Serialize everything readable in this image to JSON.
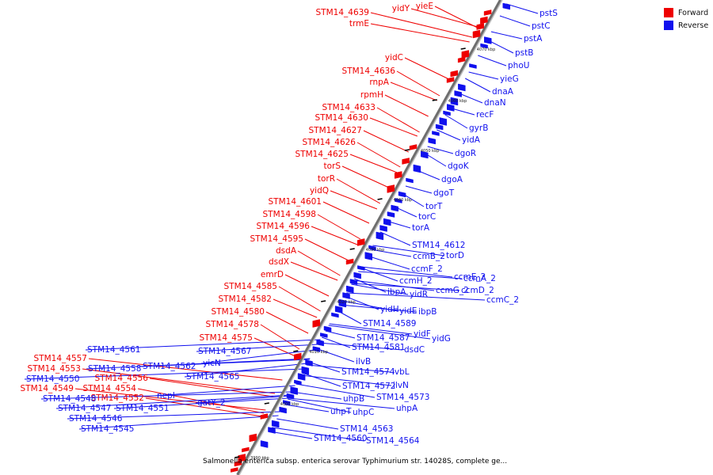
{
  "legend": {
    "forward_label": "Forward",
    "reverse_label": "Reverse",
    "forward_color": "#ee0000",
    "reverse_color": "#1010ee"
  },
  "caption": "Salmonella enterica subsp. enterica serovar Typhimurium str. 14028S, complete ge...",
  "ticks": [
    "4070 kbp",
    "4060 kbp",
    "4050 kbp",
    "4040 kbp",
    "4030 kbp",
    "4020 kbp",
    "4010 kbp",
    "4000 kbp",
    "3990 kbp"
  ],
  "forward_genes": [
    "yidY",
    "yieE",
    "STM14_4639",
    "trmE",
    "yidC",
    "STM14_4636",
    "rnpA",
    "rpmH",
    "STM14_4633",
    "STM14_4630",
    "STM14_4627",
    "STM14_4626",
    "STM14_4625",
    "torS",
    "torR",
    "yidQ",
    "STM14_4601",
    "STM14_4598",
    "STM14_4596",
    "STM14_4595",
    "dsdA",
    "dsdX",
    "emrD",
    "STM14_4585",
    "STM14_4582",
    "STM14_4580",
    "STM14_4578",
    "STM14_4575",
    "STM14_4557",
    "STM14_4553",
    "STM14_4556",
    "STM14_4549",
    "STM14_4554",
    "STM14_4552"
  ],
  "reverse_genes": [
    "pstS",
    "pstC",
    "pstA",
    "pstB",
    "phoU",
    "yieG",
    "dnaA",
    "dnaN",
    "recF",
    "gyrB",
    "yidA",
    "dgoR",
    "dgoK",
    "dgoA",
    "dgoT",
    "torT",
    "torC",
    "torA",
    "STM14_4612",
    "torD",
    "ccmB_2",
    "ccmF_2",
    "ccmE_2",
    "ccmA_2",
    "ccmH_2",
    "ccmG_2",
    "ccmD_2",
    "ibpA",
    "yidR",
    "ccmC_2",
    "yidH",
    "yidE",
    "ibpB",
    "STM14_4589",
    "yidF",
    "STM14_4587",
    "yidG",
    "STM14_4581",
    "dsdC",
    "ilvB",
    "STM14_4574",
    "ivbL",
    "STM14_4572",
    "ilvN",
    "uhpB",
    "STM14_4573",
    "uhpA",
    "uhpT",
    "uhpC",
    "STM14_4563",
    "STM14_4560",
    "STM14_4564",
    "STM14_4561",
    "STM14_4567",
    "yicN",
    "STM14_4558",
    "STM14_4562",
    "STM14_4565",
    "STM14_4550",
    "STM14_4548",
    "STM14_4547",
    "STM14_4551",
    "STM14_4546",
    "STM14_4545",
    "nepI",
    "gatY_2"
  ]
}
